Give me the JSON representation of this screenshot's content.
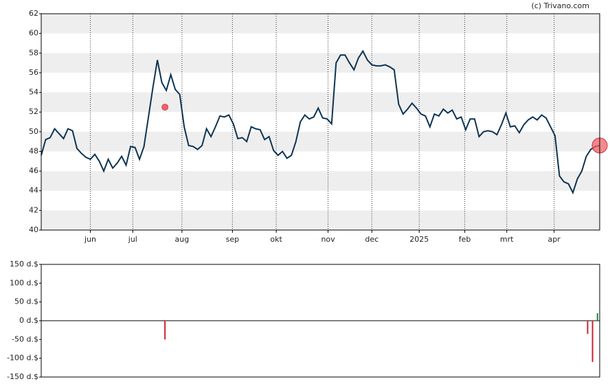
{
  "chart_data": [
    {
      "type": "line",
      "credit": "(c) Trivano.com",
      "series": [
        {
          "color": "#0d3352",
          "values": [
            47.6,
            49.2,
            49.4,
            50.3,
            49.8,
            49.3,
            50.3,
            50.1,
            48.3,
            47.8,
            47.4,
            47.2,
            47.7,
            47.0,
            46.0,
            47.2,
            46.3,
            46.8,
            47.5,
            46.6,
            48.5,
            48.4,
            47.2,
            48.5,
            51.5,
            54.5,
            57.3,
            55.0,
            54.2,
            55.8,
            54.3,
            53.8,
            50.5,
            48.6,
            48.5,
            48.2,
            48.6,
            50.3,
            49.5,
            50.5,
            51.6,
            51.5,
            51.7,
            50.8,
            49.3,
            49.4,
            49.0,
            50.5,
            50.3,
            50.2,
            49.2,
            49.5,
            48.1,
            47.6,
            48.0,
            47.3,
            47.6,
            49.0,
            51.0,
            51.7,
            51.3,
            51.5,
            52.4,
            51.4,
            51.3,
            50.8,
            57.0,
            57.8,
            57.8,
            57.0,
            56.3,
            57.5,
            58.2,
            57.3,
            56.8,
            56.7,
            56.7,
            56.8,
            56.6,
            56.3,
            52.8,
            51.8,
            52.3,
            52.9,
            52.4,
            51.8,
            51.6,
            50.5,
            51.8,
            51.6,
            52.3,
            51.9,
            52.2,
            51.3,
            51.5,
            50.2,
            51.3,
            51.3,
            49.5,
            50.0,
            50.1,
            50.0,
            49.7,
            50.7,
            51.9,
            50.5,
            50.6,
            49.9,
            50.7,
            51.2,
            51.5,
            51.2,
            51.7,
            51.4,
            50.5,
            49.6,
            45.5,
            44.9,
            44.7,
            43.8,
            45.2,
            46.0,
            47.5,
            48.2,
            48.5,
            48.6
          ]
        }
      ],
      "points": [
        {
          "x": 27.7,
          "y": 52.5,
          "color": "#f0636b"
        }
      ],
      "xlim": [
        0,
        125
      ],
      "xticks": [
        {
          "value": 11,
          "label": "jun"
        },
        {
          "value": 20.5,
          "label": "jul"
        },
        {
          "value": 31.5,
          "label": "aug"
        },
        {
          "value": 42.8,
          "label": "sep"
        },
        {
          "value": 52.6,
          "label": "okt"
        },
        {
          "value": 64.2,
          "label": "nov"
        },
        {
          "value": 74,
          "label": "dec"
        },
        {
          "value": 84.6,
          "label": "2025"
        },
        {
          "value": 94.8,
          "label": "feb"
        },
        {
          "value": 104.2,
          "label": "mrt"
        },
        {
          "value": 114.8,
          "label": "apr"
        }
      ],
      "ylim": [
        40,
        62
      ],
      "yticks": [
        40,
        42,
        44,
        46,
        48,
        50,
        52,
        54,
        56,
        58,
        60,
        62
      ],
      "grid": true
    },
    {
      "type": "bar",
      "x": [
        27.7,
        122.3,
        123.4,
        124.5
      ],
      "values": [
        -50,
        -35,
        -110,
        20
      ],
      "colors": [
        "#d0202e",
        "#d0202e",
        "#d0202e",
        "#1a8a3a"
      ],
      "xlim": [
        0,
        125
      ],
      "ylim": [
        -150,
        150
      ],
      "yticks": [
        {
          "value": 150,
          "label": "150 d.$"
        },
        {
          "value": 100,
          "label": "100 d.$"
        },
        {
          "value": 50,
          "label": "50 d.$"
        },
        {
          "value": 0,
          "label": "0 d.$"
        },
        {
          "value": -50,
          "label": "-50 d.$"
        },
        {
          "value": -100,
          "label": "-100 d.$"
        },
        {
          "value": -150,
          "label": "-150 d.$"
        }
      ],
      "grid": true
    }
  ]
}
